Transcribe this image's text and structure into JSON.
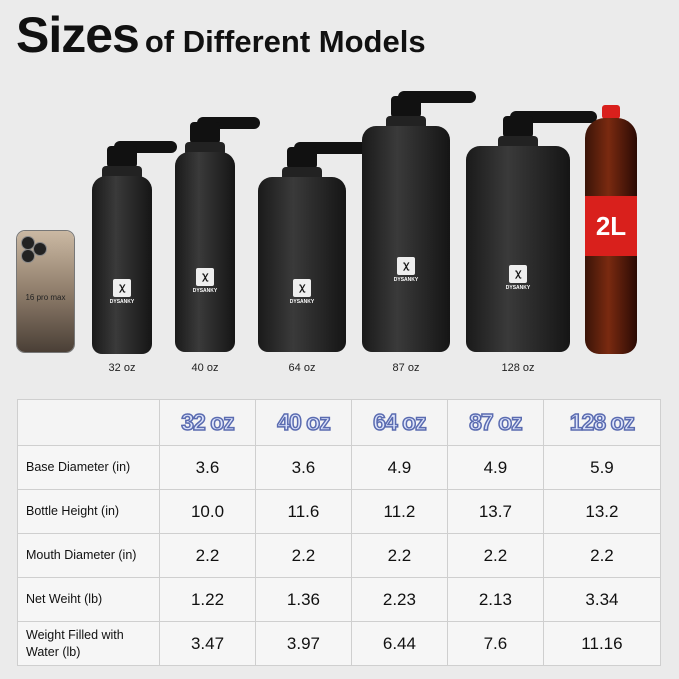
{
  "title": {
    "big": "Sizes",
    "small": "of Different Models"
  },
  "phone": {
    "label": "16 pro max"
  },
  "brand": "DYSANKY",
  "bottles": [
    "32 oz",
    "40 oz",
    "64 oz",
    "87 oz",
    "128 oz"
  ],
  "soda": {
    "label": "2L"
  },
  "table": {
    "headers": [
      "32 oz",
      "40 oz",
      "64 oz",
      "87 oz",
      "128 oz"
    ],
    "rows": [
      {
        "label": "Base Diameter (in)",
        "values": [
          "3.6",
          "3.6",
          "4.9",
          "4.9",
          "5.9"
        ]
      },
      {
        "label": "Bottle Height (in)",
        "values": [
          "10.0",
          "11.6",
          "11.2",
          "13.7",
          "13.2"
        ]
      },
      {
        "label": "Mouth Diameter (in)",
        "values": [
          "2.2",
          "2.2",
          "2.2",
          "2.2",
          "2.2"
        ]
      },
      {
        "label": "Net Weiht (lb)",
        "values": [
          "1.22",
          "1.36",
          "2.23",
          "2.13",
          "3.34"
        ]
      },
      {
        "label": "Weight Filled with Water (lb)",
        "values": [
          "3.47",
          "3.97",
          "6.44",
          "7.6",
          "11.16"
        ]
      }
    ]
  },
  "colors": {
    "header_fill": "#dde4fb",
    "header_outline": "#5a6bb0",
    "bottle": "#1a1a1a",
    "soda_label": "#d9201c"
  }
}
